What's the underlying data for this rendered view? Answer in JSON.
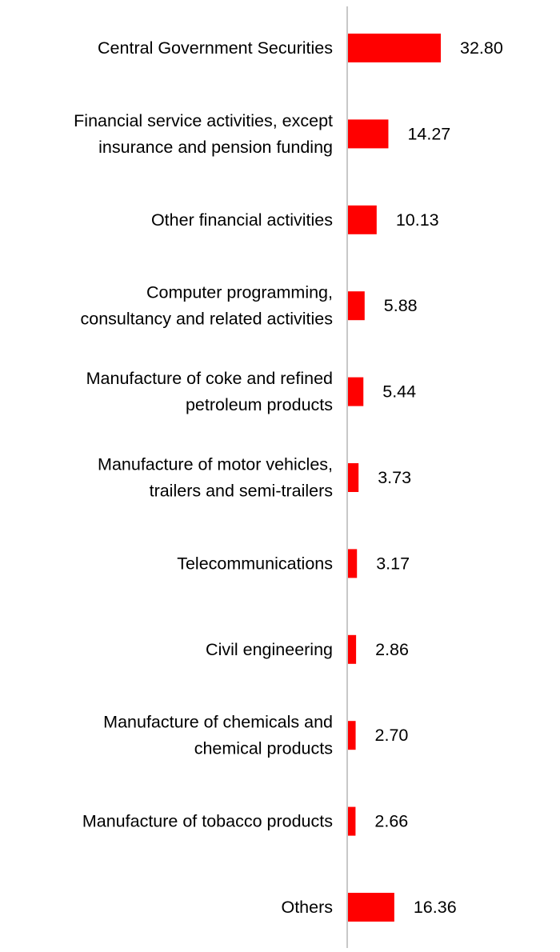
{
  "chart_data": {
    "type": "bar",
    "orientation": "horizontal",
    "title": "",
    "xlabel": "",
    "ylabel": "",
    "xlim": [
      0,
      32.8
    ],
    "grid": false,
    "legend": "none",
    "bar_color": "#ff0000",
    "axis_color": "#c8c8c8",
    "categories": [
      [
        "Central Government Securities"
      ],
      [
        "Financial service activities, except",
        "insurance and pension funding"
      ],
      [
        "Other financial activities"
      ],
      [
        "Computer programming,",
        "consultancy and related activities"
      ],
      [
        "Manufacture of coke and refined",
        "petroleum products"
      ],
      [
        "Manufacture of motor vehicles,",
        "trailers and semi-trailers"
      ],
      [
        "Telecommunications"
      ],
      [
        "Civil engineering"
      ],
      [
        "Manufacture of chemicals and",
        "chemical products"
      ],
      [
        "Manufacture of tobacco products"
      ],
      [
        "Others"
      ]
    ],
    "values": [
      32.8,
      14.27,
      10.13,
      5.88,
      5.44,
      3.73,
      3.17,
      2.86,
      2.7,
      2.66,
      16.36
    ],
    "value_labels": [
      "32.80",
      "14.27",
      "10.13",
      "5.88",
      "5.44",
      "3.73",
      "3.17",
      "2.86",
      "2.70",
      "2.66",
      "16.36"
    ]
  }
}
